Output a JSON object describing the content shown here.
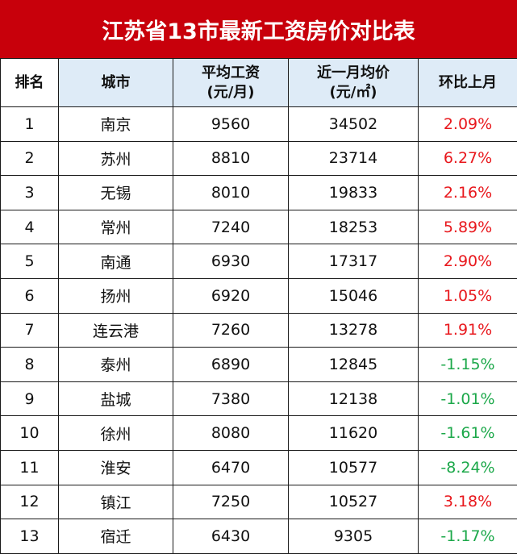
{
  "title": "江苏省13市最新工资房价对比表",
  "colors": {
    "title_bg": "#c8000b",
    "header_bg": "#deebf7",
    "up": "#e8171c",
    "down": "#1ca84a"
  },
  "headers": {
    "rank": "排名",
    "city": "城市",
    "wage_line1": "平均工资",
    "wage_line2": "(元/月)",
    "price_line1": "近一月均价",
    "price_line2": "(元/㎡)",
    "change": "环比上月"
  },
  "rows": [
    {
      "rank": "1",
      "city": "南京",
      "wage": "9560",
      "price": "34502",
      "change": "2.09%",
      "dir": "up"
    },
    {
      "rank": "2",
      "city": "苏州",
      "wage": "8810",
      "price": "23714",
      "change": "6.27%",
      "dir": "up"
    },
    {
      "rank": "3",
      "city": "无锡",
      "wage": "8010",
      "price": "19833",
      "change": "2.16%",
      "dir": "up"
    },
    {
      "rank": "4",
      "city": "常州",
      "wage": "7240",
      "price": "18253",
      "change": "5.89%",
      "dir": "up"
    },
    {
      "rank": "5",
      "city": "南通",
      "wage": "6930",
      "price": "17317",
      "change": "2.90%",
      "dir": "up"
    },
    {
      "rank": "6",
      "city": "扬州",
      "wage": "6920",
      "price": "15046",
      "change": "1.05%",
      "dir": "up"
    },
    {
      "rank": "7",
      "city": "连云港",
      "wage": "7260",
      "price": "13278",
      "change": "1.91%",
      "dir": "up"
    },
    {
      "rank": "8",
      "city": "泰州",
      "wage": "6890",
      "price": "12845",
      "change": "-1.15%",
      "dir": "down"
    },
    {
      "rank": "9",
      "city": "盐城",
      "wage": "7380",
      "price": "12138",
      "change": "-1.01%",
      "dir": "down"
    },
    {
      "rank": "10",
      "city": "徐州",
      "wage": "8080",
      "price": "11620",
      "change": "-1.61%",
      "dir": "down"
    },
    {
      "rank": "11",
      "city": "淮安",
      "wage": "6470",
      "price": "10577",
      "change": "-8.24%",
      "dir": "down"
    },
    {
      "rank": "12",
      "city": "镇江",
      "wage": "7250",
      "price": "10527",
      "change": "3.18%",
      "dir": "up"
    },
    {
      "rank": "13",
      "city": "宿迁",
      "wage": "6430",
      "price": "9305",
      "change": "-1.17%",
      "dir": "down"
    }
  ]
}
